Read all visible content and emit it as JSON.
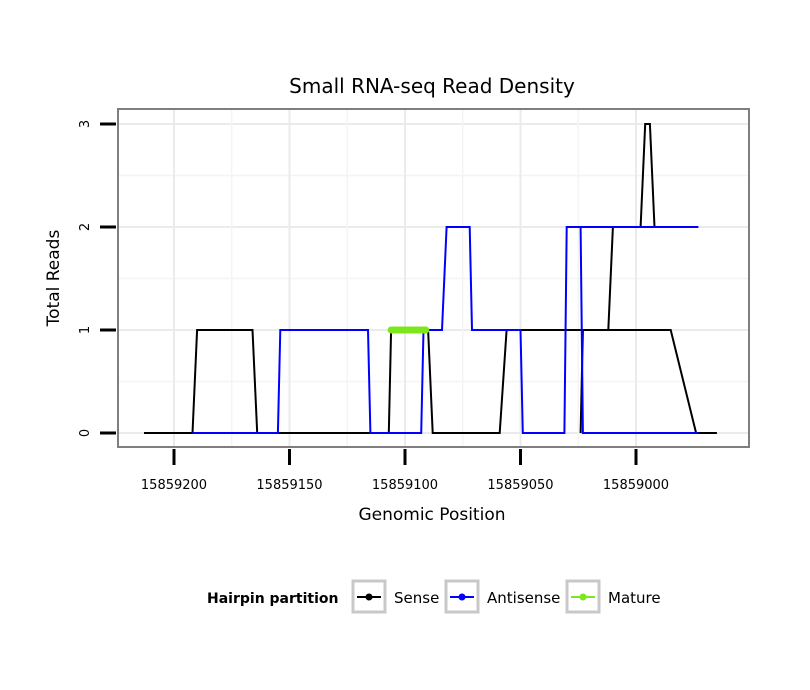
{
  "chart_data": {
    "type": "line",
    "title": "Small RNA-seq Read Density",
    "xlabel": "Genomic Position",
    "ylabel": "Total Reads",
    "x_reversed": true,
    "xlim": [
      15859225,
      15858960
    ],
    "ylim": [
      0,
      3
    ],
    "x_ticks": [
      15859200,
      15859150,
      15859100,
      15859050,
      15859000
    ],
    "x_tick_labels": [
      "15859200",
      "15859150",
      "15859100",
      "15859050",
      "15859000"
    ],
    "y_ticks": [
      0,
      1,
      2,
      3
    ],
    "y_tick_labels": [
      "0",
      "1",
      "2",
      "3"
    ],
    "grid": true,
    "legend": {
      "title": "Hairpin partition",
      "position": "bottom",
      "entries": [
        "Sense",
        "Antisense",
        "Mature"
      ]
    },
    "series": [
      {
        "name": "Sense",
        "color": "#000000",
        "x": [
          15859213,
          15859192,
          15859190,
          15859166,
          15859164,
          15859107,
          15859106,
          15859090,
          15859088,
          15859059,
          15859056,
          15858985,
          15858974,
          15858965
        ],
        "y": [
          0,
          0,
          1,
          1,
          0,
          0,
          1,
          1,
          0,
          0,
          1,
          1,
          0,
          0
        ]
      },
      {
        "name": "Sense",
        "color": "#000000",
        "x": [
          15859024,
          15859023,
          15859012,
          15859010,
          15858998,
          15858996,
          15858994,
          15858992,
          15858986
        ],
        "y": [
          0,
          1,
          1,
          2,
          2,
          3,
          3,
          2,
          2
        ]
      },
      {
        "name": "Antisense",
        "color": "#0000ff",
        "x": [
          15859192,
          15859155,
          15859154,
          15859116,
          15859115,
          15859093,
          15859092,
          15859084,
          15859082,
          15859072,
          15859071,
          15859050,
          15859049,
          15859031,
          15859030,
          15858973
        ],
        "y": [
          0,
          0,
          1,
          1,
          0,
          0,
          1,
          1,
          2,
          2,
          1,
          1,
          0,
          0,
          2,
          2
        ]
      },
      {
        "name": "Antisense",
        "color": "#0000ff",
        "x": [
          15859030,
          15859024,
          15859023,
          15858973
        ],
        "y": [
          2,
          2,
          0,
          0
        ]
      },
      {
        "name": "Mature",
        "color": "#7ee61c",
        "x": [
          15859106,
          15859091
        ],
        "y": [
          1,
          1
        ]
      }
    ]
  }
}
